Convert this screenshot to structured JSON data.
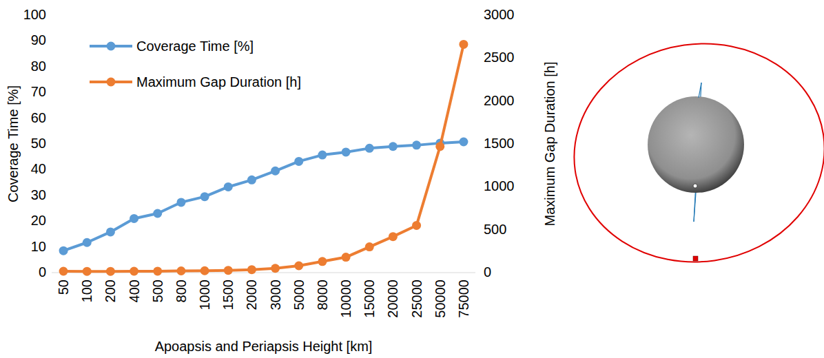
{
  "chart_data": {
    "type": "line",
    "x_label": "Apoapsis and Periapsis Height [km]",
    "y_label": "Coverage Time [%]",
    "y2_label": "Maximum Gap Duration [h]",
    "categories": [
      "50",
      "100",
      "200",
      "400",
      "500",
      "800",
      "1000",
      "1500",
      "2000",
      "3000",
      "5000",
      "8000",
      "10000",
      "15000",
      "20000",
      "25000",
      "50000",
      "75000"
    ],
    "series": [
      {
        "name": "Coverage Time [%]",
        "color": "#5b9bd5",
        "marker": "circle",
        "axis": "y",
        "values": [
          8.5,
          11.7,
          15.8,
          21,
          23,
          27.3,
          29.5,
          33.3,
          36,
          39.5,
          43.2,
          45.7,
          46.8,
          48.3,
          49,
          49.5,
          50.3,
          50.8
        ]
      },
      {
        "name": "Maximum Gap Duration [h]",
        "color": "#ed7d31",
        "marker": "circle",
        "axis": "y2",
        "values": [
          16,
          15,
          15,
          16,
          17,
          20,
          22,
          27,
          35,
          50,
          80,
          130,
          180,
          300,
          420,
          550,
          1470,
          2660
        ]
      }
    ],
    "ylim": [
      0,
      100
    ],
    "yticks": [
      0,
      10,
      20,
      30,
      40,
      50,
      60,
      70,
      80,
      90,
      100
    ],
    "y2lim": [
      0,
      3000
    ],
    "y2ticks": [
      0,
      500,
      1000,
      1500,
      2000,
      2500,
      3000
    ],
    "grid": false,
    "legend": "top-left"
  }
}
